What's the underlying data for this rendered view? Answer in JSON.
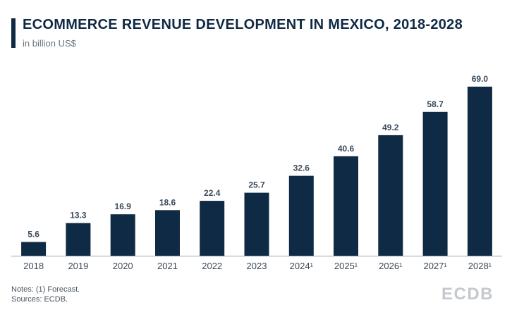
{
  "header": {
    "title": "ECOMMERCE REVENUE DEVELOPMENT IN MEXICO, 2018-2028",
    "subtitle": "in billion US$"
  },
  "chart_data": {
    "type": "bar",
    "title": "ECOMMERCE REVENUE DEVELOPMENT IN MEXICO, 2018-2028",
    "subtitle": "in billion US$",
    "xlabel": "",
    "ylabel": "",
    "categories": [
      "2018",
      "2019",
      "2020",
      "2021",
      "2022",
      "2023",
      "2024¹",
      "2025¹",
      "2026¹",
      "2027¹",
      "2028¹"
    ],
    "values": [
      5.6,
      13.3,
      16.9,
      18.6,
      22.4,
      25.7,
      32.6,
      40.6,
      49.2,
      58.7,
      69.0
    ],
    "value_labels": [
      "5.6",
      "13.3",
      "16.9",
      "18.6",
      "22.4",
      "25.7",
      "32.6",
      "40.6",
      "49.2",
      "58.7",
      "69.0"
    ],
    "ylim": [
      0,
      69.0
    ],
    "grid": false,
    "legend": "none",
    "bar_color": "#0f2a44"
  },
  "footer": {
    "notes": "Notes: (1) Forecast.",
    "sources": "Sources: ECDB.",
    "logo": "ECDB"
  },
  "colors": {
    "primary": "#0f2a44",
    "muted_text": "#6a7684",
    "logo": "#c5c9ce"
  }
}
